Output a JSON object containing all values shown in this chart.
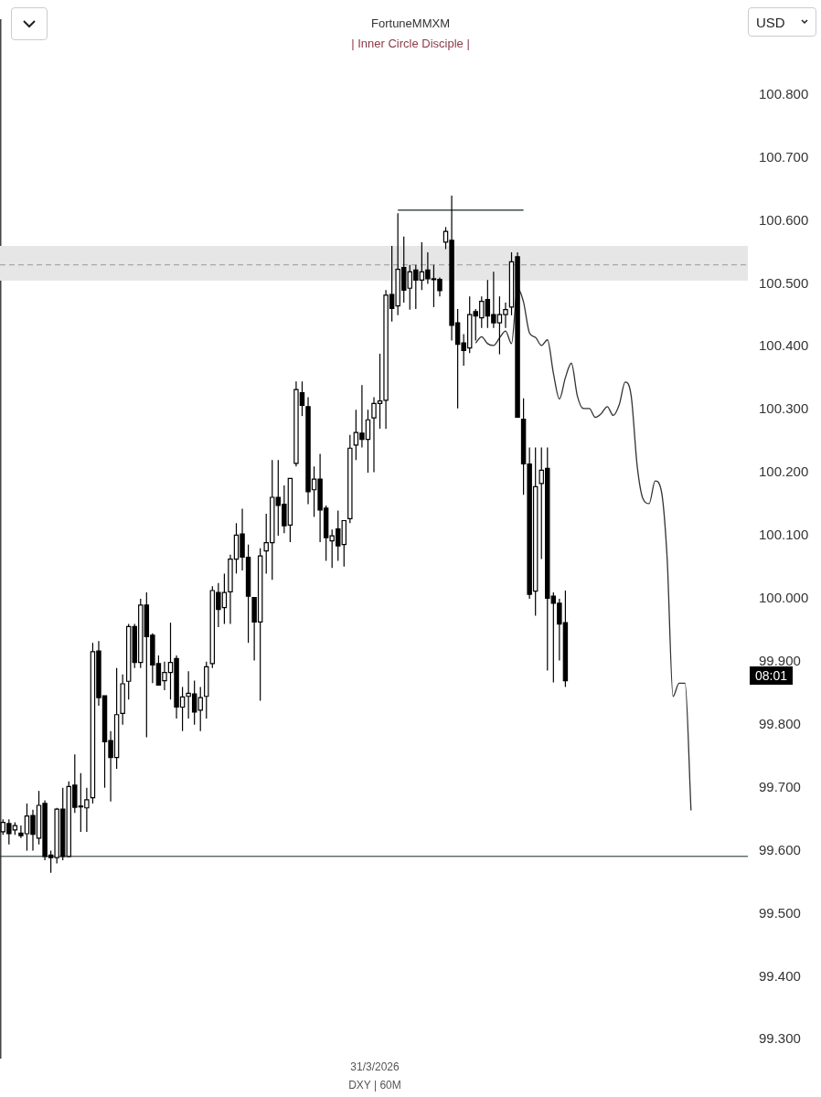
{
  "chart_data": {
    "type": "candlestick",
    "title": "FortuneMMXM",
    "subtitle": "| Inner Circle Disciple |",
    "categories": [
      null,
      null,
      null,
      null,
      null,
      null,
      null,
      null,
      null,
      null,
      null,
      null,
      null,
      null,
      null,
      null,
      null,
      null,
      null,
      null,
      null,
      null,
      null,
      null,
      null,
      null,
      null,
      null,
      null,
      null,
      null,
      null,
      null,
      null,
      null,
      null,
      null,
      null,
      null,
      null,
      null,
      null,
      null,
      null,
      null,
      null,
      null,
      null,
      null,
      null,
      null,
      null,
      null,
      null,
      null,
      null,
      null,
      null,
      null,
      null,
      null,
      null,
      null,
      null,
      null,
      null,
      null,
      null,
      null,
      null,
      null,
      null,
      null,
      null,
      null,
      null,
      null,
      null,
      null,
      null,
      null,
      null,
      null,
      null,
      null,
      null,
      null,
      null,
      null,
      null,
      null,
      null,
      null,
      null,
      null,
      null,
      null,
      null,
      null,
      null,
      null,
      null,
      null,
      null,
      null,
      null,
      null,
      null,
      null,
      null,
      null,
      null,
      null,
      null,
      null,
      null,
      null,
      null,
      null,
      null,
      null,
      null,
      null,
      null,
      null
    ],
    "color": "#000000",
    "colors": [
      "#ffffff",
      "#000000",
      "#ffffff",
      "#000000",
      "#ffffff",
      "#000000",
      "#ffffff",
      "#000000",
      "#000000",
      "#ffffff",
      "#000000",
      "#ffffff",
      "#000000",
      "#ffffff",
      "#ffffff",
      "#ffffff",
      "#000000",
      "#000000",
      "#000000",
      "#ffffff",
      "#ffffff",
      "#ffffff",
      "#000000",
      "#ffffff",
      "#000000",
      "#000000",
      "#000000",
      "#ffffff",
      "#ffffff",
      "#000000",
      "#ffffff",
      "#ffffff",
      "#000000",
      "#ffffff",
      "#ffffff",
      "#ffffff",
      "#000000",
      "#ffffff",
      "#ffffff",
      "#ffffff",
      "#000000",
      "#000000",
      "#000000",
      "#ffffff",
      "#ffffff",
      "#ffffff",
      "#000000",
      "#000000",
      "#ffffff",
      "#ffffff",
      "#000000",
      "#000000",
      "#ffffff",
      "#000000",
      "#000000",
      "#ffffff",
      "#000000",
      "#ffffff",
      "#ffffff",
      "#ffffff",
      "#000000",
      "#ffffff",
      "#ffffff",
      "#ffffff",
      "#ffffff",
      "#000000",
      "#ffffff",
      "#000000",
      "#ffffff",
      "#000000",
      "#ffffff",
      "#000000",
      "#ffffff",
      "#000000",
      "#ffffff",
      "#000000",
      "#000000",
      "#000000",
      "#ffffff",
      "#000000",
      "#ffffff",
      "#000000",
      "#000000",
      "#ffffff",
      "#ffffff",
      "#ffffff",
      "#000000",
      "#000000",
      "#000000",
      "#ffffff",
      "#ffffff",
      "#000000",
      "#000000",
      "#000000",
      "#000000",
      null,
      null,
      null,
      null,
      null,
      null,
      null,
      null,
      null,
      null,
      null,
      null,
      null,
      null,
      null,
      null,
      null,
      null,
      null,
      null,
      null,
      null,
      null,
      null,
      null,
      null,
      null,
      null,
      null,
      null
    ],
    "ohlc": [
      [
        99.63,
        99.65,
        99.625,
        99.645
      ],
      [
        99.643,
        99.65,
        99.61,
        99.627
      ],
      [
        99.633,
        99.645,
        99.625,
        99.64
      ],
      [
        99.628,
        99.64,
        99.62,
        99.624
      ],
      [
        99.627,
        99.675,
        99.6,
        99.655
      ],
      [
        99.656,
        99.665,
        99.6,
        99.626
      ],
      [
        99.62,
        99.695,
        99.61,
        99.672
      ],
      [
        99.675,
        99.68,
        99.585,
        99.591
      ],
      [
        99.593,
        99.6,
        99.565,
        99.589
      ],
      [
        99.589,
        99.668,
        99.58,
        99.666
      ],
      [
        99.666,
        99.7,
        99.585,
        99.591
      ],
      [
        99.591,
        99.71,
        99.59,
        99.702
      ],
      [
        99.704,
        99.753,
        99.66,
        99.669
      ],
      [
        99.671,
        99.723,
        99.63,
        99.671
      ],
      [
        99.668,
        99.7,
        99.63,
        99.681
      ],
      [
        99.684,
        99.93,
        99.675,
        99.916
      ],
      [
        99.917,
        99.933,
        99.83,
        99.843
      ],
      [
        99.846,
        99.846,
        99.7,
        99.773
      ],
      [
        99.775,
        99.79,
        99.678,
        99.748
      ],
      [
        99.748,
        99.89,
        99.73,
        99.816
      ],
      [
        99.818,
        99.88,
        99.8,
        99.865
      ],
      [
        99.869,
        99.96,
        99.84,
        99.956
      ],
      [
        99.956,
        99.96,
        99.89,
        99.899
      ],
      [
        99.899,
        100.0,
        99.89,
        99.99
      ],
      [
        99.99,
        100.01,
        99.78,
        99.94
      ],
      [
        99.942,
        99.945,
        99.866,
        99.895
      ],
      [
        99.897,
        99.91,
        99.863,
        99.863
      ],
      [
        99.87,
        99.9,
        99.855,
        99.883
      ],
      [
        99.883,
        99.962,
        99.84,
        99.899
      ],
      [
        99.905,
        99.91,
        99.81,
        99.828
      ],
      [
        99.828,
        99.86,
        99.79,
        99.844
      ],
      [
        99.845,
        99.885,
        99.81,
        99.85
      ],
      [
        99.849,
        99.87,
        99.8,
        99.82
      ],
      [
        99.823,
        99.86,
        99.79,
        99.843
      ],
      [
        99.845,
        99.9,
        99.81,
        99.892
      ],
      [
        99.897,
        100.02,
        99.89,
        100.013
      ],
      [
        100.01,
        100.025,
        99.955,
        99.983
      ],
      [
        99.986,
        100.04,
        99.96,
        100.01
      ],
      [
        100.011,
        100.07,
        99.96,
        100.063
      ],
      [
        100.063,
        100.12,
        100.04,
        100.101
      ],
      [
        100.103,
        100.143,
        100.045,
        100.066
      ],
      [
        100.066,
        100.086,
        99.93,
        100.004
      ],
      [
        100.002,
        100.002,
        99.902,
        99.963
      ],
      [
        99.963,
        100.08,
        99.838,
        100.068
      ],
      [
        100.076,
        100.135,
        100.04,
        100.089
      ],
      [
        100.089,
        100.22,
        100.03,
        100.161
      ],
      [
        100.161,
        100.22,
        100.1,
        100.148
      ],
      [
        100.15,
        100.18,
        100.104,
        100.116
      ],
      [
        100.117,
        100.191,
        100.09,
        100.191
      ],
      [
        100.215,
        100.345,
        100.21,
        100.332
      ],
      [
        100.327,
        100.345,
        100.29,
        100.307
      ],
      [
        100.305,
        100.32,
        100.15,
        100.17
      ],
      [
        100.173,
        100.21,
        100.13,
        100.19
      ],
      [
        100.19,
        100.23,
        100.09,
        100.141
      ],
      [
        100.144,
        100.148,
        100.06,
        100.097
      ],
      [
        100.092,
        100.11,
        100.049,
        100.1
      ],
      [
        100.111,
        100.14,
        100.06,
        100.084
      ],
      [
        100.086,
        100.124,
        100.051,
        100.124
      ],
      [
        100.127,
        100.26,
        100.12,
        100.239
      ],
      [
        100.244,
        100.3,
        100.22,
        100.264
      ],
      [
        100.263,
        100.339,
        100.24,
        100.253
      ],
      [
        100.253,
        100.3,
        100.2,
        100.284
      ],
      [
        100.287,
        100.32,
        100.201,
        100.31
      ],
      [
        100.31,
        100.389,
        100.27,
        100.314
      ],
      [
        100.315,
        100.49,
        100.27,
        100.482
      ],
      [
        100.483,
        100.56,
        100.44,
        100.461
      ],
      [
        100.465,
        100.612,
        100.45,
        100.523
      ],
      [
        100.526,
        100.575,
        100.47,
        100.49
      ],
      [
        100.493,
        100.53,
        100.459,
        100.519
      ],
      [
        100.522,
        100.53,
        100.46,
        100.506
      ],
      [
        100.506,
        100.566,
        100.49,
        100.519
      ],
      [
        100.522,
        100.55,
        100.5,
        100.508
      ],
      [
        100.508,
        100.53,
        100.463,
        100.508
      ],
      [
        100.507,
        100.51,
        100.48,
        100.489
      ],
      [
        100.566,
        100.59,
        100.555,
        100.583
      ],
      [
        100.569,
        100.64,
        100.41,
        100.434
      ],
      [
        100.438,
        100.46,
        100.302,
        100.404
      ],
      [
        100.406,
        100.42,
        100.37,
        100.394
      ],
      [
        100.398,
        100.48,
        100.39,
        100.451
      ],
      [
        100.456,
        100.46,
        100.41,
        100.449
      ],
      [
        100.446,
        100.48,
        100.43,
        100.472
      ],
      [
        100.475,
        100.506,
        100.43,
        100.449
      ],
      [
        100.451,
        100.519,
        100.43,
        100.438
      ],
      [
        100.438,
        100.48,
        100.388,
        100.451
      ],
      [
        100.451,
        100.47,
        100.43,
        100.459
      ],
      [
        100.463,
        100.55,
        100.45,
        100.535
      ],
      [
        100.543,
        100.55,
        100.288,
        100.288
      ],
      [
        100.285,
        100.318,
        100.165,
        100.214
      ],
      [
        100.214,
        100.24,
        100.0,
        100.007
      ],
      [
        100.012,
        100.24,
        99.973,
        100.178
      ],
      [
        100.183,
        100.24,
        100.063,
        100.204
      ],
      [
        100.207,
        100.24,
        99.886,
        100.001
      ],
      [
        100.004,
        100.01,
        99.867,
        99.993
      ],
      [
        99.993,
        100.0,
        99.902,
        99.96
      ],
      [
        99.962,
        100.013,
        99.86,
        99.87
      ],
      null,
      null,
      null,
      null,
      null,
      null,
      null,
      null,
      null,
      null,
      null,
      null,
      null,
      null,
      null,
      null,
      null,
      null,
      null,
      null,
      null,
      null,
      null,
      null,
      null,
      null,
      null,
      null,
      null,
      null
    ],
    "series": [
      {
        "type": "line",
        "color": "#333333",
        "values": [
          null,
          null,
          null,
          null,
          null,
          null,
          null,
          null,
          null,
          null,
          null,
          null,
          null,
          null,
          null,
          null,
          null,
          null,
          null,
          null,
          null,
          null,
          null,
          null,
          null,
          null,
          null,
          null,
          null,
          null,
          null,
          null,
          null,
          null,
          null,
          null,
          null,
          null,
          null,
          null,
          null,
          null,
          null,
          null,
          null,
          null,
          null,
          null,
          null,
          null,
          null,
          null,
          null,
          null,
          null,
          null,
          null,
          null,
          null,
          null,
          null,
          null,
          null,
          null,
          null,
          null,
          null,
          null,
          null,
          null,
          null,
          null,
          null,
          null,
          null,
          null,
          null,
          null,
          null,
          100.406,
          100.416,
          100.405,
          100.402,
          100.414,
          100.425,
          100.405,
          100.493,
          100.471,
          100.422,
          100.415,
          100.402,
          100.411,
          100.358,
          100.317,
          100.351,
          100.374,
          100.322,
          100.302,
          100.302,
          100.288,
          100.294,
          100.305,
          100.291,
          100.308,
          100.344,
          100.322,
          100.211,
          100.158,
          100.151,
          100.187,
          100.173,
          100.066,
          99.845,
          99.866,
          99.866,
          99.664,
          null,
          null,
          null,
          null,
          null,
          null,
          null,
          null,
          null
        ]
      },
      {
        "type": "line",
        "color": "#1a2a2a",
        "values": [
          null,
          null,
          null,
          null,
          null,
          null,
          null,
          null,
          null,
          null,
          null,
          null,
          null,
          null,
          null,
          null,
          null,
          null,
          null,
          null,
          null,
          null,
          null,
          null,
          null,
          null,
          null,
          null,
          null,
          null,
          null,
          null,
          null,
          null,
          null,
          null,
          null,
          null,
          null,
          null,
          null,
          null,
          null,
          null,
          null,
          null,
          null,
          null,
          null,
          null,
          null,
          null,
          null,
          null,
          null,
          null,
          null,
          null,
          null,
          null,
          null,
          null,
          null,
          null,
          null,
          null,
          100.617,
          100.617,
          100.617,
          100.617,
          100.617,
          100.617,
          100.617,
          100.617,
          100.617,
          100.617,
          100.617,
          100.617,
          100.617,
          100.617,
          100.617,
          100.617,
          100.617,
          100.617,
          100.617,
          100.617,
          100.617,
          100.617,
          null,
          null,
          null,
          null,
          null,
          null,
          null,
          null,
          null,
          null,
          null,
          null,
          null,
          null,
          null,
          null,
          null,
          null,
          null,
          null,
          null,
          null,
          null,
          null,
          null,
          null,
          null,
          null,
          null,
          null,
          null,
          null,
          null,
          null,
          null,
          null,
          null
        ]
      }
    ],
    "ref_lines": [
      {
        "axis": "y",
        "value": 99.591,
        "color": "#1a2a2a",
        "line_style": "solid"
      },
      {
        "axis": "y",
        "value": 100.53,
        "color": "#9a9a9a",
        "line_style": "dashed"
      }
    ],
    "bands": [
      {
        "axis": "y",
        "from": 100.505,
        "to": 100.56,
        "color": "#e6e6e6"
      }
    ],
    "ylim": [
      99.27,
      100.92
    ],
    "yticks": [
      {
        "value": 99.3,
        "label": "99.300"
      },
      {
        "value": 99.4,
        "label": "99.400"
      },
      {
        "value": 99.5,
        "label": "99.500"
      },
      {
        "value": 99.6,
        "label": "99.600"
      },
      {
        "value": 99.7,
        "label": "99.700"
      },
      {
        "value": 99.8,
        "label": "99.800"
      },
      {
        "value": 99.9,
        "label": "99.900"
      },
      {
        "value": 100.0,
        "label": "100.000"
      },
      {
        "value": 100.1,
        "label": "100.100"
      },
      {
        "value": 100.2,
        "label": "100.200"
      },
      {
        "value": 100.3,
        "label": "100.300"
      },
      {
        "value": 100.4,
        "label": "100.400"
      },
      {
        "value": 100.5,
        "label": "100.500"
      },
      {
        "value": 100.6,
        "label": "100.600"
      },
      {
        "value": 100.7,
        "label": "100.700"
      },
      {
        "value": 100.8,
        "label": "100.800"
      }
    ],
    "tick_labels": "y",
    "grid": false,
    "legend": false,
    "annotations": [
      "USD",
      "08:01",
      "31/3/2026",
      "DXY | 60M"
    ]
  }
}
